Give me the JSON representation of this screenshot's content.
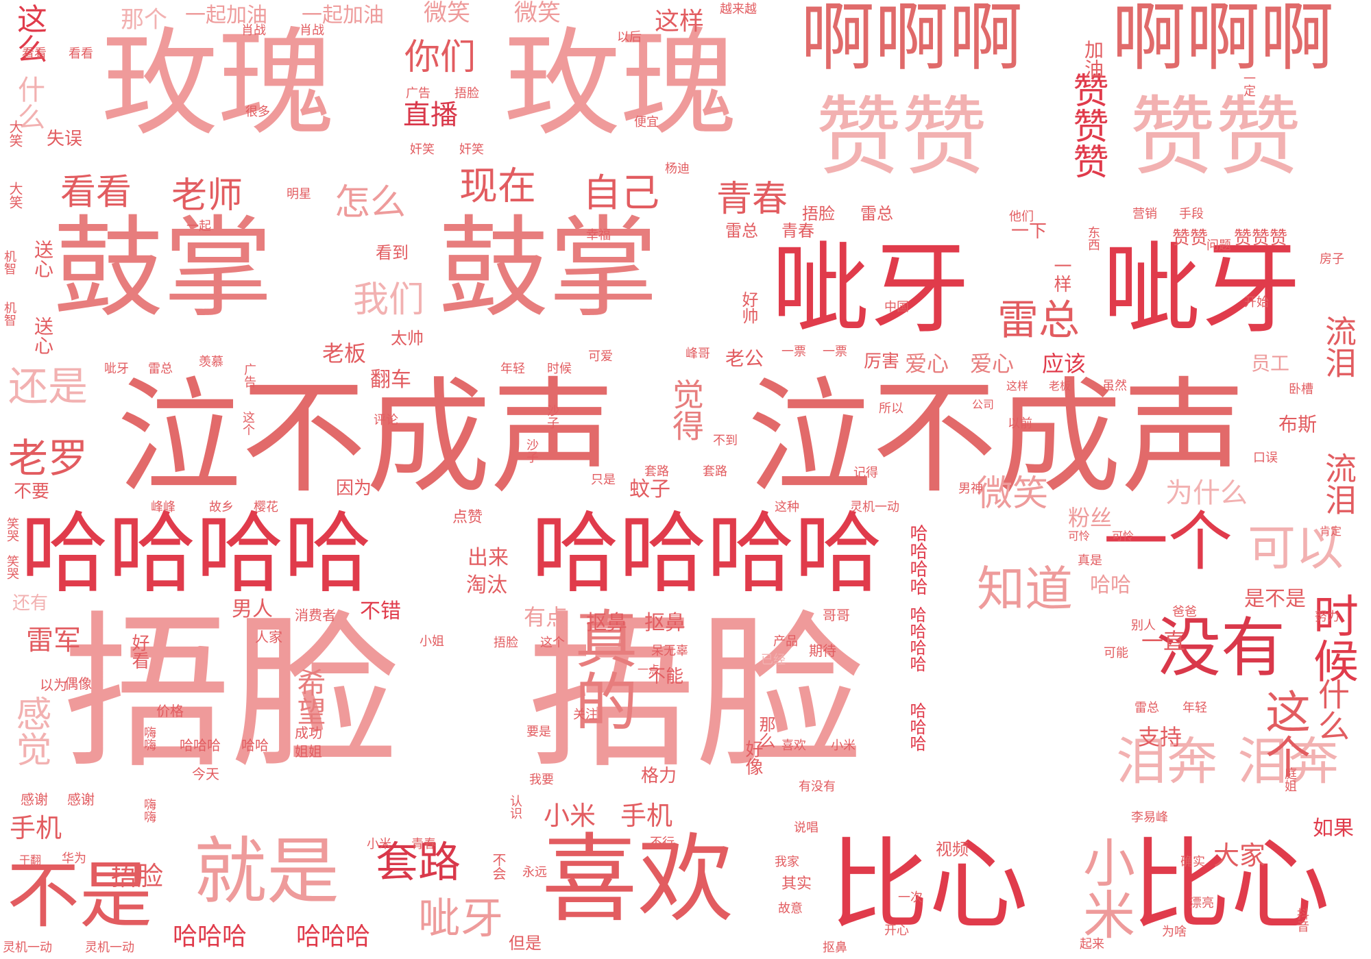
{
  "palette": {
    "background": "#ffffff",
    "deep_red": "#d9384a",
    "red": "#e25c60",
    "pink": "#ee9b9b",
    "light_pink": "#f2b4b4"
  },
  "words": [
    {
      "id": "w1",
      "text": "捂脸",
      "color": "#ef9a9a"
    },
    {
      "id": "w2",
      "text": "捂脸",
      "color": "#ef9a9a"
    },
    {
      "id": "w3",
      "text": "泣不成声",
      "color": "#e26a6a"
    },
    {
      "id": "w4",
      "text": "泣不成声",
      "color": "#e26a6a"
    },
    {
      "id": "w5",
      "text": "鼓掌",
      "color": "#e77d7d"
    },
    {
      "id": "w6",
      "text": "鼓掌",
      "color": "#e77d7d"
    },
    {
      "id": "w7",
      "text": "玫瑰",
      "color": "#ef9a9a"
    },
    {
      "id": "w8",
      "text": "玫瑰",
      "color": "#ef9a9a"
    },
    {
      "id": "w9",
      "text": "哈哈哈哈",
      "color": "#e03b4b"
    },
    {
      "id": "w10",
      "text": "哈哈哈哈",
      "color": "#e03b4b"
    },
    {
      "id": "w11",
      "text": "呲牙",
      "color": "#e03b4b"
    },
    {
      "id": "w12",
      "text": "呲牙",
      "color": "#e03b4b"
    },
    {
      "id": "w13",
      "text": "赞赞",
      "color": "#f2b1b1"
    },
    {
      "id": "w14",
      "text": "赞赞",
      "color": "#f2b1b1"
    },
    {
      "id": "w15",
      "text": "比心",
      "color": "#e03b4b"
    },
    {
      "id": "w16",
      "text": "比心",
      "color": "#e03b4b"
    },
    {
      "id": "w17",
      "text": "喜欢",
      "color": "#e25c60"
    },
    {
      "id": "w18",
      "text": "啊啊啊",
      "color": "#e06a6a"
    },
    {
      "id": "w19",
      "text": "啊啊啊",
      "color": "#e06a6a"
    },
    {
      "id": "w20",
      "text": "就是",
      "color": "#ee9b9b"
    },
    {
      "id": "w21",
      "text": "不是",
      "color": "#e25c60"
    },
    {
      "id": "w22",
      "text": "没有",
      "color": "#d9384a"
    },
    {
      "id": "w23",
      "text": "一个",
      "color": "#e03b4b"
    },
    {
      "id": "w24",
      "text": "真的",
      "color": "#e77d7d"
    },
    {
      "id": "w25",
      "text": "可以",
      "color": "#f2b1b1"
    },
    {
      "id": "w26",
      "text": "知道",
      "color": "#ee9b9b"
    },
    {
      "id": "w27",
      "text": "泪奔",
      "color": "#f2b1b1"
    },
    {
      "id": "w28",
      "text": "泪奔",
      "color": "#f2b1b1"
    },
    {
      "id": "w29",
      "text": "小米",
      "color": "#ee9b9b"
    },
    {
      "id": "w30",
      "text": "时候",
      "color": "#e03b4b"
    },
    {
      "id": "w31",
      "text": "这个",
      "color": "#e25c60"
    },
    {
      "id": "w32",
      "text": "什么",
      "color": "#e25c60"
    },
    {
      "id": "w33",
      "text": "流泪",
      "color": "#e25c60"
    },
    {
      "id": "w34",
      "text": "流泪",
      "color": "#e25c60"
    },
    {
      "id": "w35",
      "text": "赞赞赞",
      "color": "#e03b4b"
    },
    {
      "id": "w36",
      "text": "套路",
      "color": "#d9384a"
    },
    {
      "id": "w37",
      "text": "呲牙",
      "color": "#ee9b9b"
    },
    {
      "id": "w38",
      "text": "现在",
      "color": "#e25c60"
    },
    {
      "id": "w39",
      "text": "自己",
      "color": "#e25c60"
    },
    {
      "id": "w40",
      "text": "青春",
      "color": "#e25c60"
    },
    {
      "id": "w41",
      "text": "看看",
      "color": "#e25c60"
    },
    {
      "id": "w42",
      "text": "老师",
      "color": "#e25c60"
    },
    {
      "id": "w43",
      "text": "怎么",
      "color": "#ee9b9b"
    },
    {
      "id": "w44",
      "text": "你们",
      "color": "#e25c60"
    },
    {
      "id": "w45",
      "text": "直播",
      "color": "#d9384a"
    },
    {
      "id": "w46",
      "text": "我们",
      "color": "#f2b1b1"
    },
    {
      "id": "w47",
      "text": "雷总",
      "color": "#e25c60"
    },
    {
      "id": "w48",
      "text": "觉得",
      "color": "#e77d7d"
    },
    {
      "id": "w49",
      "text": "还是",
      "color": "#f2b1b1"
    },
    {
      "id": "w50",
      "text": "老罗",
      "color": "#e25c60"
    },
    {
      "id": "w51",
      "text": "微笑",
      "color": "#ee9b9b"
    },
    {
      "id": "w52",
      "text": "粉丝",
      "color": "#ee9b9b"
    },
    {
      "id": "w53",
      "text": "为什么",
      "color": "#f2b1b1"
    },
    {
      "id": "w54",
      "text": "感觉",
      "color": "#f2b1b1"
    },
    {
      "id": "w55",
      "text": "希望",
      "color": "#e77d7d"
    },
    {
      "id": "w56",
      "text": "雷军",
      "color": "#e25c60"
    },
    {
      "id": "w57",
      "text": "哈哈哈",
      "color": "#e03b4b"
    },
    {
      "id": "w58",
      "text": "哈哈哈",
      "color": "#e03b4b"
    },
    {
      "id": "w59",
      "text": "捂脸",
      "color": "#e25c60"
    },
    {
      "id": "w60",
      "text": "手机",
      "color": "#e25c60"
    },
    {
      "id": "w61",
      "text": "小米",
      "color": "#e25c60"
    },
    {
      "id": "w62",
      "text": "手机",
      "color": "#e25c60"
    },
    {
      "id": "w63",
      "text": "大家",
      "color": "#e25c60"
    },
    {
      "id": "w64",
      "text": "如果",
      "color": "#e03b4b"
    },
    {
      "id": "w65",
      "text": "支持",
      "color": "#e25c60"
    },
    {
      "id": "w66",
      "text": "一直",
      "color": "#e25c60"
    },
    {
      "id": "w67",
      "text": "哈哈",
      "color": "#ee9b9b"
    },
    {
      "id": "w68",
      "text": "是不是",
      "color": "#e25c60"
    },
    {
      "id": "w69",
      "text": "有点",
      "color": "#ee9b9b"
    },
    {
      "id": "w70",
      "text": "抠鼻",
      "color": "#e25c60"
    },
    {
      "id": "w71",
      "text": "抠鼻",
      "color": "#e25c60"
    },
    {
      "id": "w72",
      "text": "淘汰",
      "color": "#e25c60"
    },
    {
      "id": "w73",
      "text": "出来",
      "color": "#e25c60"
    },
    {
      "id": "w74",
      "text": "男人",
      "color": "#e25c60"
    },
    {
      "id": "w75",
      "text": "不错",
      "color": "#e03b4b"
    },
    {
      "id": "w76",
      "text": "这么",
      "color": "#e03b4b"
    },
    {
      "id": "w77",
      "text": "什么",
      "color": "#f2b1b1"
    },
    {
      "id": "w78",
      "text": "那个",
      "color": "#f2b1b1"
    },
    {
      "id": "w79",
      "text": "一起加油",
      "color": "#ee9b9b"
    },
    {
      "id": "w80",
      "text": "一起加油",
      "color": "#ee9b9b"
    },
    {
      "id": "w81",
      "text": "微笑",
      "color": "#ee9b9b"
    },
    {
      "id": "w82",
      "text": "微笑",
      "color": "#ee9b9b"
    },
    {
      "id": "w83",
      "text": "这样",
      "color": "#e25c60"
    },
    {
      "id": "w84",
      "text": "越来越",
      "color": "#e25c60"
    },
    {
      "id": "w85",
      "text": "加油",
      "color": "#e25c60"
    },
    {
      "id": "w86",
      "text": "失误",
      "color": "#e25c60"
    },
    {
      "id": "w87",
      "text": "翻车",
      "color": "#e25c60"
    },
    {
      "id": "w88",
      "text": "老板",
      "color": "#e25c60"
    },
    {
      "id": "w89",
      "text": "太帅",
      "color": "#e25c60"
    },
    {
      "id": "w90",
      "text": "看到",
      "color": "#e25c60"
    },
    {
      "id": "w91",
      "text": "雷总",
      "color": "#e25c60"
    },
    {
      "id": "w92",
      "text": "青春",
      "color": "#e25c60"
    },
    {
      "id": "w93",
      "text": "捂脸",
      "color": "#e25c60"
    },
    {
      "id": "w94",
      "text": "雷总",
      "color": "#e25c60"
    },
    {
      "id": "w95",
      "text": "一样",
      "color": "#e25c60"
    },
    {
      "id": "w96",
      "text": "爱心",
      "color": "#e77d7d"
    },
    {
      "id": "w97",
      "text": "爱心",
      "color": "#e77d7d"
    },
    {
      "id": "w98",
      "text": "应该",
      "color": "#e03b4b"
    },
    {
      "id": "w99",
      "text": "员工",
      "color": "#ee9b9b"
    },
    {
      "id": "w100",
      "text": "布斯",
      "color": "#e25c60"
    },
    {
      "id": "w101",
      "text": "厉害",
      "color": "#e25c60"
    },
    {
      "id": "w102",
      "text": "老公",
      "color": "#e25c60"
    },
    {
      "id": "w103",
      "text": "蚊子",
      "color": "#e25c60"
    },
    {
      "id": "w104",
      "text": "因为",
      "color": "#e25c60"
    },
    {
      "id": "w105",
      "text": "不要",
      "color": "#e25c60"
    },
    {
      "id": "w106",
      "text": "还有",
      "color": "#f2b1b1"
    },
    {
      "id": "w107",
      "text": "好看",
      "color": "#e25c60"
    },
    {
      "id": "w108",
      "text": "送心",
      "color": "#e25c60"
    },
    {
      "id": "w109",
      "text": "送心",
      "color": "#e25c60"
    },
    {
      "id": "w110",
      "text": "哈哈哈哈",
      "color": "#e03b4b"
    },
    {
      "id": "w111",
      "text": "哈哈哈",
      "color": "#e03b4b"
    },
    {
      "id": "w112",
      "text": "好像",
      "color": "#e25c60"
    },
    {
      "id": "w113",
      "text": "那么",
      "color": "#e25c60"
    },
    {
      "id": "w114",
      "text": "格力",
      "color": "#e25c60"
    },
    {
      "id": "w115",
      "text": "不能",
      "color": "#e25c60"
    },
    {
      "id": "w116",
      "text": "但是",
      "color": "#e25c60"
    },
    {
      "id": "w117",
      "text": "视频",
      "color": "#e25c60"
    },
    {
      "id": "w118",
      "text": "其实",
      "color": "#e25c60"
    },
    {
      "id": "w119",
      "text": "一下",
      "color": "#e25c60"
    },
    {
      "id": "w120",
      "text": "好帅",
      "color": "#e25c60"
    },
    {
      "id": "w121",
      "text": "赞赞",
      "color": "#e25c60"
    },
    {
      "id": "w122",
      "text": "赞赞赞",
      "color": "#e25c60"
    },
    {
      "id": "w123",
      "text": "感谢",
      "color": "#e25c60"
    },
    {
      "id": "w124",
      "text": "感谢",
      "color": "#e25c60"
    },
    {
      "id": "w125",
      "text": "今天",
      "color": "#e25c60"
    },
    {
      "id": "w126",
      "text": "姐姐",
      "color": "#e25c60"
    },
    {
      "id": "w127",
      "text": "成功",
      "color": "#e25c60"
    },
    {
      "id": "w128",
      "text": "哈哈哈",
      "color": "#e25c60"
    },
    {
      "id": "w129",
      "text": "哈哈",
      "color": "#e25c60"
    },
    {
      "id": "w130",
      "text": "价格",
      "color": "#e25c60"
    },
    {
      "id": "w131",
      "text": "偶像",
      "color": "#e25c60"
    },
    {
      "id": "w132",
      "text": "以为",
      "color": "#e25c60"
    },
    {
      "id": "w133",
      "text": "人家",
      "color": "#e25c60"
    },
    {
      "id": "w134",
      "text": "捂脸",
      "color": "#e25c60"
    },
    {
      "id": "w135",
      "text": "这个",
      "color": "#e25c60"
    },
    {
      "id": "w136",
      "text": "消费者",
      "color": "#e25c60"
    },
    {
      "id": "w137",
      "text": "小姐",
      "color": "#e25c60"
    },
    {
      "id": "w138",
      "text": "产品",
      "color": "#e25c60"
    },
    {
      "id": "w139",
      "text": "哥哥",
      "color": "#e25c60"
    },
    {
      "id": "w140",
      "text": "期待",
      "color": "#e25c60"
    },
    {
      "id": "w141",
      "text": "已经",
      "color": "#f2b1b1"
    },
    {
      "id": "w142",
      "text": "呆无辜",
      "color": "#e25c60"
    },
    {
      "id": "w143",
      "text": "一点",
      "color": "#e25c60"
    },
    {
      "id": "w144",
      "text": "可能",
      "color": "#e25c60"
    },
    {
      "id": "w145",
      "text": "爸爸",
      "color": "#e25c60"
    },
    {
      "id": "w146",
      "text": "别人",
      "color": "#e25c60"
    },
    {
      "id": "w147",
      "text": "努力",
      "color": "#e25c60"
    },
    {
      "id": "w148",
      "text": "雷总",
      "color": "#e25c60"
    },
    {
      "id": "w149",
      "text": "年轻",
      "color": "#e25c60"
    },
    {
      "id": "w150",
      "text": "喜欢",
      "color": "#e25c60"
    },
    {
      "id": "w151",
      "text": "小米",
      "color": "#e25c60"
    },
    {
      "id": "w152",
      "text": "有没有",
      "color": "#e25c60"
    },
    {
      "id": "w153",
      "text": "说唱",
      "color": "#e25c60"
    },
    {
      "id": "w154",
      "text": "李易峰",
      "color": "#e25c60"
    },
    {
      "id": "w155",
      "text": "确实",
      "color": "#e25c60"
    },
    {
      "id": "w156",
      "text": "我家",
      "color": "#e25c60"
    },
    {
      "id": "w157",
      "text": "不行",
      "color": "#e25c60"
    },
    {
      "id": "w158",
      "text": "小米",
      "color": "#e25c60"
    },
    {
      "id": "w159",
      "text": "青春",
      "color": "#e25c60"
    },
    {
      "id": "w160",
      "text": "华为",
      "color": "#e25c60"
    },
    {
      "id": "w161",
      "text": "干翻",
      "color": "#e25c60"
    },
    {
      "id": "w162",
      "text": "灵机一动",
      "color": "#e25c60"
    },
    {
      "id": "w163",
      "text": "灵机一动",
      "color": "#e25c60"
    },
    {
      "id": "w164",
      "text": "永远",
      "color": "#e25c60"
    },
    {
      "id": "w165",
      "text": "不会",
      "color": "#e25c60"
    },
    {
      "id": "w166",
      "text": "故意",
      "color": "#e25c60"
    },
    {
      "id": "w167",
      "text": "抠鼻",
      "color": "#e25c60"
    },
    {
      "id": "w168",
      "text": "开心",
      "color": "#e25c60"
    },
    {
      "id": "w169",
      "text": "起来",
      "color": "#e25c60"
    },
    {
      "id": "w170",
      "text": "为啥",
      "color": "#e25c60"
    },
    {
      "id": "w171",
      "text": "漂亮",
      "color": "#e25c60"
    },
    {
      "id": "w172",
      "text": "抖音",
      "color": "#e25c60"
    },
    {
      "id": "w173",
      "text": "一次",
      "color": "#e25c60"
    },
    {
      "id": "w174",
      "text": "我要",
      "color": "#e25c60"
    },
    {
      "id": "w175",
      "text": "认识",
      "color": "#e25c60"
    },
    {
      "id": "w176",
      "text": "关注",
      "color": "#e25c60"
    },
    {
      "id": "w177",
      "text": "要是",
      "color": "#e25c60"
    },
    {
      "id": "w178",
      "text": "嗨嗨",
      "color": "#e25c60"
    },
    {
      "id": "w179",
      "text": "嗨嗨",
      "color": "#e25c60"
    },
    {
      "id": "w180",
      "text": "庭姐",
      "color": "#e25c60"
    },
    {
      "id": "w181",
      "text": "肖战",
      "color": "#e25c60"
    },
    {
      "id": "w182",
      "text": "肖战",
      "color": "#e25c60"
    },
    {
      "id": "w183",
      "text": "看看",
      "color": "#e25c60"
    },
    {
      "id": "w184",
      "text": "看看",
      "color": "#e25c60"
    },
    {
      "id": "w185",
      "text": "以后",
      "color": "#e25c60"
    },
    {
      "id": "w186",
      "text": "一定",
      "color": "#e25c60"
    },
    {
      "id": "w187",
      "text": "广告",
      "color": "#e25c60"
    },
    {
      "id": "w188",
      "text": "捂脸",
      "color": "#e25c60"
    },
    {
      "id": "w189",
      "text": "很多",
      "color": "#e25c60"
    },
    {
      "id": "w190",
      "text": "便宜",
      "color": "#e25c60"
    },
    {
      "id": "w191",
      "text": "奸笑",
      "color": "#e25c60"
    },
    {
      "id": "w192",
      "text": "奸笑",
      "color": "#e25c60"
    },
    {
      "id": "w193",
      "text": "杨迪",
      "color": "#e25c60"
    },
    {
      "id": "w194",
      "text": "大笑",
      "color": "#e25c60"
    },
    {
      "id": "w195",
      "text": "大笑",
      "color": "#e25c60"
    },
    {
      "id": "w196",
      "text": "明星",
      "color": "#e25c60"
    },
    {
      "id": "w197",
      "text": "一起",
      "color": "#e25c60"
    },
    {
      "id": "w198",
      "text": "他们",
      "color": "#e25c60"
    },
    {
      "id": "w199",
      "text": "营销",
      "color": "#e25c60"
    },
    {
      "id": "w200",
      "text": "手段",
      "color": "#e25c60"
    },
    {
      "id": "w201",
      "text": "机智",
      "color": "#e25c60"
    },
    {
      "id": "w202",
      "text": "机智",
      "color": "#e25c60"
    },
    {
      "id": "w203",
      "text": "幸福",
      "color": "#e25c60"
    },
    {
      "id": "w204",
      "text": "东西",
      "color": "#e25c60"
    },
    {
      "id": "w205",
      "text": "问题",
      "color": "#e25c60"
    },
    {
      "id": "w206",
      "text": "房子",
      "color": "#e25c60"
    },
    {
      "id": "w207",
      "text": "中国",
      "color": "#e25c60"
    },
    {
      "id": "w208",
      "text": "开始",
      "color": "#e25c60"
    },
    {
      "id": "w209",
      "text": "呲牙",
      "color": "#e25c60"
    },
    {
      "id": "w210",
      "text": "雷总",
      "color": "#e25c60"
    },
    {
      "id": "w211",
      "text": "羡慕",
      "color": "#e25c60"
    },
    {
      "id": "w212",
      "text": "广告",
      "color": "#e25c60"
    },
    {
      "id": "w213",
      "text": "年轻",
      "color": "#e25c60"
    },
    {
      "id": "w214",
      "text": "时候",
      "color": "#e25c60"
    },
    {
      "id": "w215",
      "text": "可爱",
      "color": "#e25c60"
    },
    {
      "id": "w216",
      "text": "峰哥",
      "color": "#e25c60"
    },
    {
      "id": "w217",
      "text": "一票",
      "color": "#e25c60"
    },
    {
      "id": "w218",
      "text": "一票",
      "color": "#e25c60"
    },
    {
      "id": "w219",
      "text": "虽然",
      "color": "#e25c60"
    },
    {
      "id": "w220",
      "text": "这样",
      "color": "#e25c60"
    },
    {
      "id": "w221",
      "text": "老板",
      "color": "#e25c60"
    },
    {
      "id": "w222",
      "text": "卧槽",
      "color": "#e25c60"
    },
    {
      "id": "w223",
      "text": "所以",
      "color": "#e25c60"
    },
    {
      "id": "w224",
      "text": "公司",
      "color": "#e25c60"
    },
    {
      "id": "w225",
      "text": "以前",
      "color": "#e25c60"
    },
    {
      "id": "w226",
      "text": "评论",
      "color": "#e25c60"
    },
    {
      "id": "w227",
      "text": "这个",
      "color": "#e25c60"
    },
    {
      "id": "w228",
      "text": "沙子",
      "color": "#e25c60"
    },
    {
      "id": "w229",
      "text": "沙子",
      "color": "#e25c60"
    },
    {
      "id": "w230",
      "text": "不到",
      "color": "#e25c60"
    },
    {
      "id": "w231",
      "text": "口误",
      "color": "#e25c60"
    },
    {
      "id": "w232",
      "text": "套路",
      "color": "#e25c60"
    },
    {
      "id": "w233",
      "text": "套路",
      "color": "#e25c60"
    },
    {
      "id": "w234",
      "text": "记得",
      "color": "#e25c60"
    },
    {
      "id": "w235",
      "text": "只是",
      "color": "#e25c60"
    },
    {
      "id": "w236",
      "text": "男神",
      "color": "#e25c60"
    },
    {
      "id": "w237",
      "text": "峰峰",
      "color": "#e25c60"
    },
    {
      "id": "w238",
      "text": "故乡",
      "color": "#e25c60"
    },
    {
      "id": "w239",
      "text": "樱花",
      "color": "#e25c60"
    },
    {
      "id": "w240",
      "text": "这种",
      "color": "#e25c60"
    },
    {
      "id": "w241",
      "text": "灵机一动",
      "color": "#e25c60"
    },
    {
      "id": "w242",
      "text": "点赞",
      "color": "#e25c60"
    },
    {
      "id": "w243",
      "text": "可怜",
      "color": "#e25c60"
    },
    {
      "id": "w244",
      "text": "可怜",
      "color": "#e25c60"
    },
    {
      "id": "w245",
      "text": "肯定",
      "color": "#e25c60"
    },
    {
      "id": "w246",
      "text": "真是",
      "color": "#e25c60"
    },
    {
      "id": "w247",
      "text": "笑哭",
      "color": "#e25c60"
    },
    {
      "id": "w248",
      "text": "笑哭",
      "color": "#e25c60"
    },
    {
      "id": "w249",
      "text": "哈哈哈哈",
      "color": "#e25c60"
    }
  ]
}
